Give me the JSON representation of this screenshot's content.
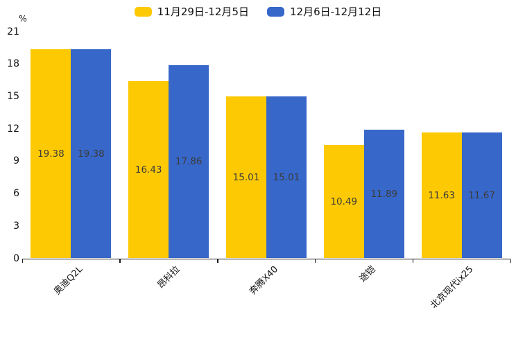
{
  "legend": {
    "items": [
      {
        "label": "11月29日-12月5日",
        "color": "#FDC902"
      },
      {
        "label": "12月6日-12月12日",
        "color": "#3767C9"
      }
    ]
  },
  "y_axis": {
    "unit": "%",
    "ticks": [
      0,
      3,
      6,
      9,
      12,
      15,
      18,
      21
    ]
  },
  "chart_data": {
    "type": "bar",
    "title": "",
    "categories": [
      "奥迪Q2L",
      "昂科拉",
      "奔腾X40",
      "途铠",
      "北京现代ix25"
    ],
    "series": [
      {
        "name": "11月29日-12月5日",
        "color": "#FDC902",
        "values": [
          19.38,
          16.43,
          15.01,
          10.49,
          11.63
        ]
      },
      {
        "name": "12月6日-12月12日",
        "color": "#3767C9",
        "values": [
          19.38,
          17.86,
          15.01,
          11.89,
          11.67
        ]
      }
    ],
    "xlabel": "",
    "ylabel": "%",
    "ylim": [
      0,
      21
    ],
    "yticks": [
      0,
      3,
      6,
      9,
      12,
      15,
      18,
      21
    ],
    "grid": false,
    "legend_position": "top-center",
    "value_labels": "inside-center",
    "bar_value_label_format": "0.00"
  }
}
